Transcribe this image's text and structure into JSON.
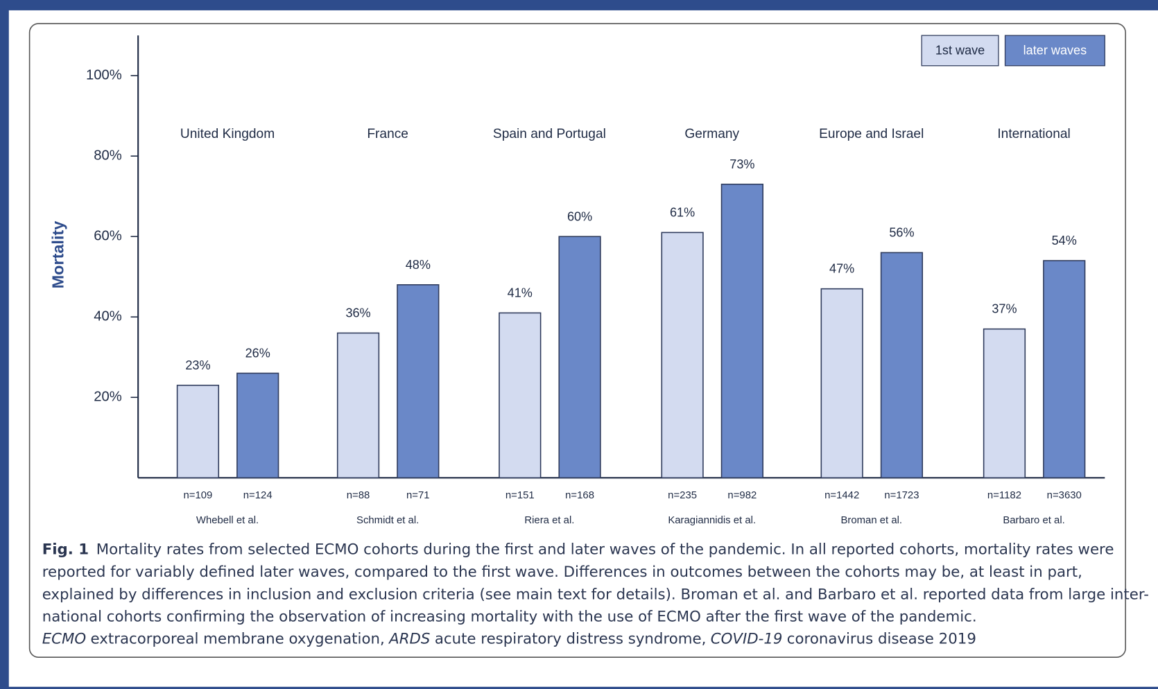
{
  "chart_data": {
    "type": "bar",
    "categories": [
      "United Kingdom",
      "France",
      "Spain and Portugal",
      "Germany",
      "Europe and Israel",
      "International"
    ],
    "studies": [
      "Whebell et al.",
      "Schmidt et al.",
      "Riera et al.",
      "Karagiannidis et al.",
      "Broman et al.",
      "Barbaro et al."
    ],
    "y_label": "Mortality",
    "series": [
      {
        "name": "1st wave",
        "color": "#d3dbf0",
        "values": [
          23,
          36,
          41,
          61,
          47,
          37
        ],
        "value_labels": [
          "23%",
          "36%",
          "41%",
          "61%",
          "47%",
          "37%"
        ],
        "sample_sizes": [
          "n=109",
          "n=88",
          "n=151",
          "n=235",
          "n=1442",
          "n=1182"
        ]
      },
      {
        "name": "later waves",
        "color": "#6a88c8",
        "values": [
          26,
          48,
          60,
          73,
          56,
          54
        ],
        "value_labels": [
          "26%",
          "48%",
          "60%",
          "73%",
          "56%",
          "54%"
        ],
        "sample_sizes": [
          "n=124",
          "n=71",
          "n=168",
          "n=982",
          "n=1723",
          "n=3630"
        ]
      }
    ],
    "ylim": [
      0,
      110
    ],
    "yticks": [
      {
        "value": 20,
        "label": "20%"
      },
      {
        "value": 40,
        "label": "40%"
      },
      {
        "value": 60,
        "label": "60%"
      },
      {
        "value": 80,
        "label": "80%"
      },
      {
        "value": 100,
        "label": "100%"
      }
    ],
    "legend_position": "top-right"
  },
  "caption": {
    "label": "Fig. 1",
    "lines": [
      "Mortality rates from selected ECMO cohorts during the first and later waves of the pandemic. In all reported cohorts, mortality rates were",
      "reported for variably defined later waves, compared to the first wave. Differences in outcomes between the cohorts may be, at least in part,",
      "explained by differences in inclusion and exclusion criteria (see main text for details). Broman et al. and Barbaro et al. reported data from large inter-",
      "national cohorts confirming the observation of increasing mortality with the use of ECMO after the first wave of the pandemic."
    ],
    "abbreviations": [
      {
        "term": "ECMO",
        "definition": "extracorporeal membrane oxygenation,"
      },
      {
        "term": "ARDS",
        "definition": "acute respiratory distress syndrome,"
      },
      {
        "term": "COVID-19",
        "definition": "coronavirus disease 2019"
      }
    ]
  }
}
